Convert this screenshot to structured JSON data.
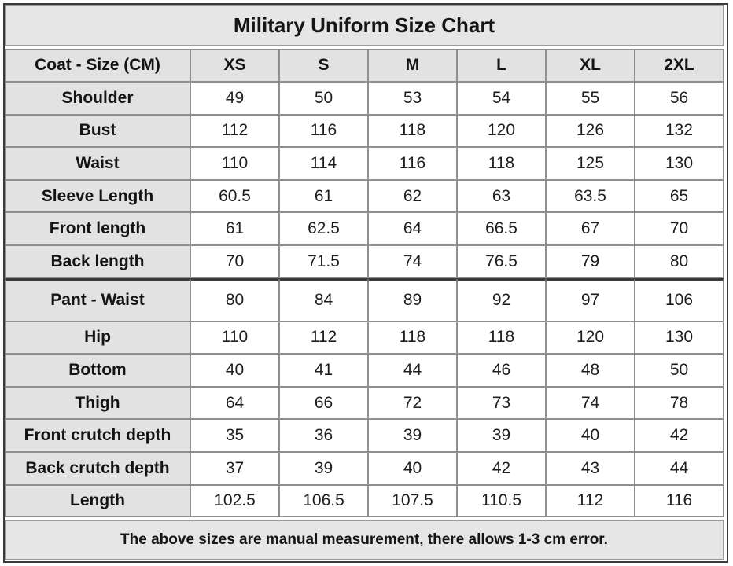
{
  "title": "Military Uniform Size Chart",
  "table": {
    "corner": "Coat - Size (CM)",
    "sizes": [
      "XS",
      "S",
      "M",
      "L",
      "XL",
      "2XL"
    ],
    "rows": [
      {
        "label": "Shoulder",
        "values": [
          "49",
          "50",
          "53",
          "54",
          "55",
          "56"
        ]
      },
      {
        "label": "Bust",
        "values": [
          "112",
          "116",
          "118",
          "120",
          "126",
          "132"
        ]
      },
      {
        "label": "Waist",
        "values": [
          "110",
          "114",
          "116",
          "118",
          "125",
          "130"
        ]
      },
      {
        "label": "Sleeve Length",
        "values": [
          "60.5",
          "61",
          "62",
          "63",
          "63.5",
          "65"
        ]
      },
      {
        "label": "Front length",
        "values": [
          "61",
          "62.5",
          "64",
          "66.5",
          "67",
          "70"
        ]
      },
      {
        "label": "Back length",
        "values": [
          "70",
          "71.5",
          "74",
          "76.5",
          "79",
          "80"
        ]
      },
      {
        "label": "Pant - Waist",
        "values": [
          "80",
          "84",
          "89",
          "92",
          "97",
          "106"
        ]
      },
      {
        "label": "Hip",
        "values": [
          "110",
          "112",
          "118",
          "118",
          "120",
          "130"
        ]
      },
      {
        "label": "Bottom",
        "values": [
          "40",
          "41",
          "44",
          "46",
          "48",
          "50"
        ]
      },
      {
        "label": "Thigh",
        "values": [
          "64",
          "66",
          "72",
          "73",
          "74",
          "78"
        ]
      },
      {
        "label": "Front crutch depth",
        "values": [
          "35",
          "36",
          "39",
          "39",
          "40",
          "42"
        ]
      },
      {
        "label": "Back crutch depth",
        "values": [
          "37",
          "39",
          "40",
          "42",
          "43",
          "44"
        ]
      },
      {
        "label": "Length",
        "values": [
          "102.5",
          "106.5",
          "107.5",
          "110.5",
          "112",
          "116"
        ]
      }
    ]
  },
  "footer": "The above sizes are manual measurement,  there allows 1-3 cm error."
}
